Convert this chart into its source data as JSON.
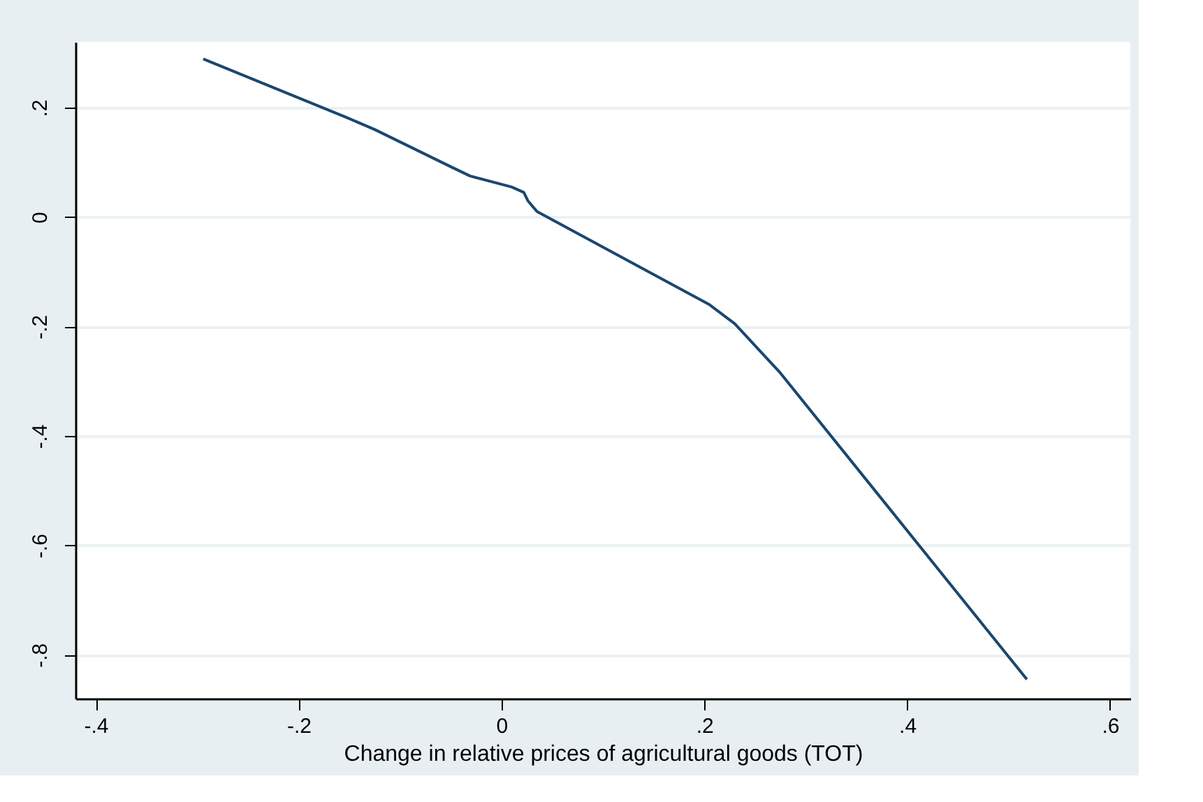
{
  "chart_data": {
    "type": "line",
    "xlabel": "Change in relative prices of agricultural goods (TOT)",
    "x": [
      -0.294,
      -0.154,
      -0.125,
      -0.05,
      -0.031,
      0.01,
      0.022,
      0.026,
      0.035,
      0.05,
      0.138,
      0.205,
      0.23,
      0.275,
      0.518
    ],
    "series": [
      {
        "color": "#1a476f",
        "values": [
          0.289,
          0.183,
          0.16,
          0.092,
          0.075,
          0.055,
          0.045,
          0.03,
          0.01,
          -0.005,
          -0.093,
          -0.16,
          -0.195,
          -0.285,
          -0.845
        ]
      }
    ],
    "xlim": [
      -0.42,
      0.62
    ],
    "ylim": [
      -0.88,
      0.32
    ],
    "xticks": [
      {
        "value": -0.4,
        "label": "-.4"
      },
      {
        "value": -0.2,
        "label": "-.2"
      },
      0,
      {
        "value": 0.2,
        "label": ".2"
      },
      {
        "value": 0.4,
        "label": ".4"
      },
      {
        "value": 0.6,
        "label": ".6"
      }
    ],
    "yticks": [
      {
        "value": -0.8,
        "label": "-.8"
      },
      {
        "value": -0.6,
        "label": "-.6"
      },
      {
        "value": -0.4,
        "label": "-.4"
      },
      {
        "value": -0.2,
        "label": "-.2"
      },
      0,
      {
        "value": 0.2,
        "label": ".2"
      }
    ],
    "grid": "y",
    "marker": "none",
    "line_style": "solid"
  }
}
